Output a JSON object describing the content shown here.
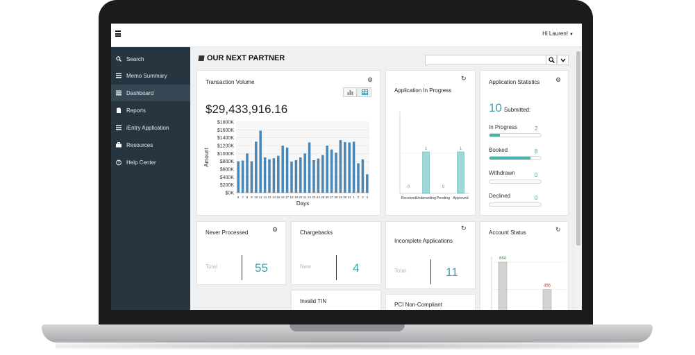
{
  "header": {
    "greeting": "Hi Lauren!"
  },
  "sidebar": {
    "items": [
      {
        "label": "Search",
        "icon": "search-icon"
      },
      {
        "label": "Memo Summary",
        "icon": "list-icon"
      },
      {
        "label": "Dashboard",
        "icon": "list-icon",
        "active": true
      },
      {
        "label": "Reports",
        "icon": "document-icon"
      },
      {
        "label": "iEntry Application",
        "icon": "list-icon"
      },
      {
        "label": "Resources",
        "icon": "briefcase-icon"
      },
      {
        "label": "Help Center",
        "icon": "help-circle-icon"
      }
    ]
  },
  "brand": {
    "name": "OUR NEXT PARTNER"
  },
  "search": {
    "placeholder": ""
  },
  "transaction_volume": {
    "title": "Transaction Volume",
    "amount": "$29,433,916.16"
  },
  "application_in_progress": {
    "title": "Application In Progress"
  },
  "application_statistics": {
    "title": "Application Statistics",
    "submitted_count": "10",
    "submitted_label": "Submitted:",
    "rows": [
      {
        "label": "In Progress",
        "count": "2",
        "fraction": 0.2
      },
      {
        "label": "Booked",
        "count": "8",
        "fraction": 0.8
      },
      {
        "label": "Withdrawn",
        "count": "0",
        "fraction": 0
      },
      {
        "label": "Declined",
        "count": "0",
        "fraction": 0
      }
    ]
  },
  "never_processed": {
    "title": "Never Processed",
    "label": "Total",
    "value": "55"
  },
  "chargebacks": {
    "title": "Chargebacks",
    "label": "New",
    "value": "4"
  },
  "incomplete_applications": {
    "title": "Incomplete Applications",
    "label": "Total",
    "value": "11"
  },
  "account_status": {
    "title": "Account Status"
  },
  "invalid_tin": {
    "title": "Invalid TIN"
  },
  "pci_non_compliant": {
    "title": "PCI Non-Compliant"
  },
  "colors": {
    "sidebar": "#26353f",
    "accent": "#3a9fb0",
    "bar": "#4a86b4"
  },
  "chart_data": [
    {
      "type": "bar",
      "xlabel": "Days",
      "ylabel": "Amount",
      "ylim": [
        0,
        1800000
      ],
      "yticks": [
        "$0K",
        "$200K",
        "$400K",
        "$600K",
        "$800K",
        "$1000K",
        "$1200K",
        "$1400K",
        "$1600K",
        "$1800K"
      ],
      "categories": [
        "6",
        "7",
        "8",
        "9",
        "10",
        "11",
        "12",
        "13",
        "14",
        "15",
        "16",
        "17",
        "18",
        "19",
        "20",
        "21",
        "22",
        "23",
        "24",
        "25",
        "26",
        "27",
        "28",
        "29",
        "30",
        "31",
        "1",
        "2",
        "3",
        "4"
      ],
      "values": [
        800000,
        820000,
        1000000,
        800000,
        1300000,
        1580000,
        900000,
        850000,
        880000,
        940000,
        1200000,
        1150000,
        790000,
        830000,
        900000,
        1000000,
        1280000,
        830000,
        870000,
        960000,
        1200000,
        1100000,
        1020000,
        1340000,
        1290000,
        1280000,
        1300000,
        750000,
        850000,
        470000
      ],
      "grid": true
    },
    {
      "type": "bar",
      "categories": [
        "Received",
        "Underwriting",
        "Pending",
        "Approved"
      ],
      "values": [
        0,
        1,
        0,
        1
      ]
    },
    {
      "type": "bar",
      "values": [
        884,
        456
      ]
    }
  ]
}
